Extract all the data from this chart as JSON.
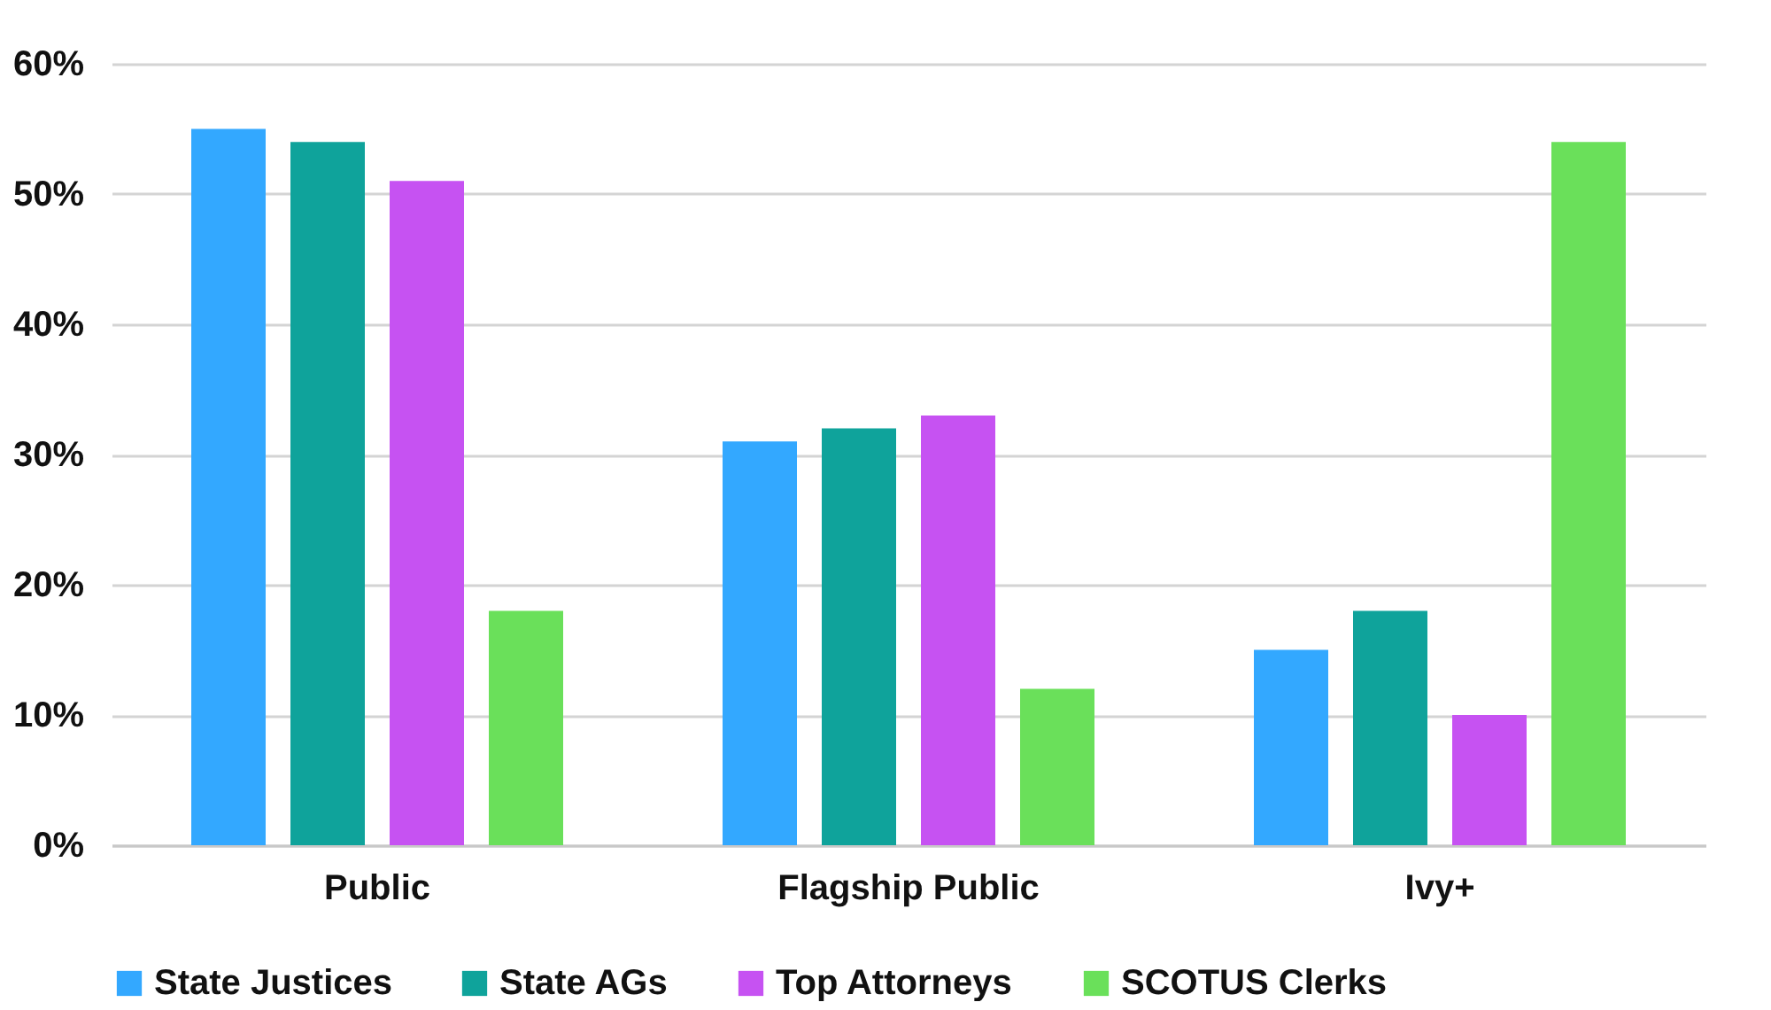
{
  "chart_data": {
    "type": "bar",
    "categories": [
      "Public",
      "Flagship Public",
      "Ivy+"
    ],
    "series": [
      {
        "name": "State Justices",
        "color": "#33a8ff",
        "values": [
          55,
          31,
          15
        ]
      },
      {
        "name": "State AGs",
        "color": "#0fa39b",
        "values": [
          54,
          32,
          18
        ]
      },
      {
        "name": "Top Attorneys",
        "color": "#c652f2",
        "values": [
          51,
          33,
          10
        ]
      },
      {
        "name": "SCOTUS Clerks",
        "color": "#6ae05a",
        "values": [
          18,
          12,
          54
        ]
      }
    ],
    "ylim": [
      0,
      60
    ],
    "yticks": [
      {
        "value": 0,
        "label": "0%"
      },
      {
        "value": 10,
        "label": "10%"
      },
      {
        "value": 20,
        "label": "20%"
      },
      {
        "value": 30,
        "label": "30%"
      },
      {
        "value": 40,
        "label": "40%"
      },
      {
        "value": 50,
        "label": "50%"
      },
      {
        "value": 60,
        "label": "60%"
      }
    ],
    "grid": "y",
    "legend": "bottom"
  }
}
